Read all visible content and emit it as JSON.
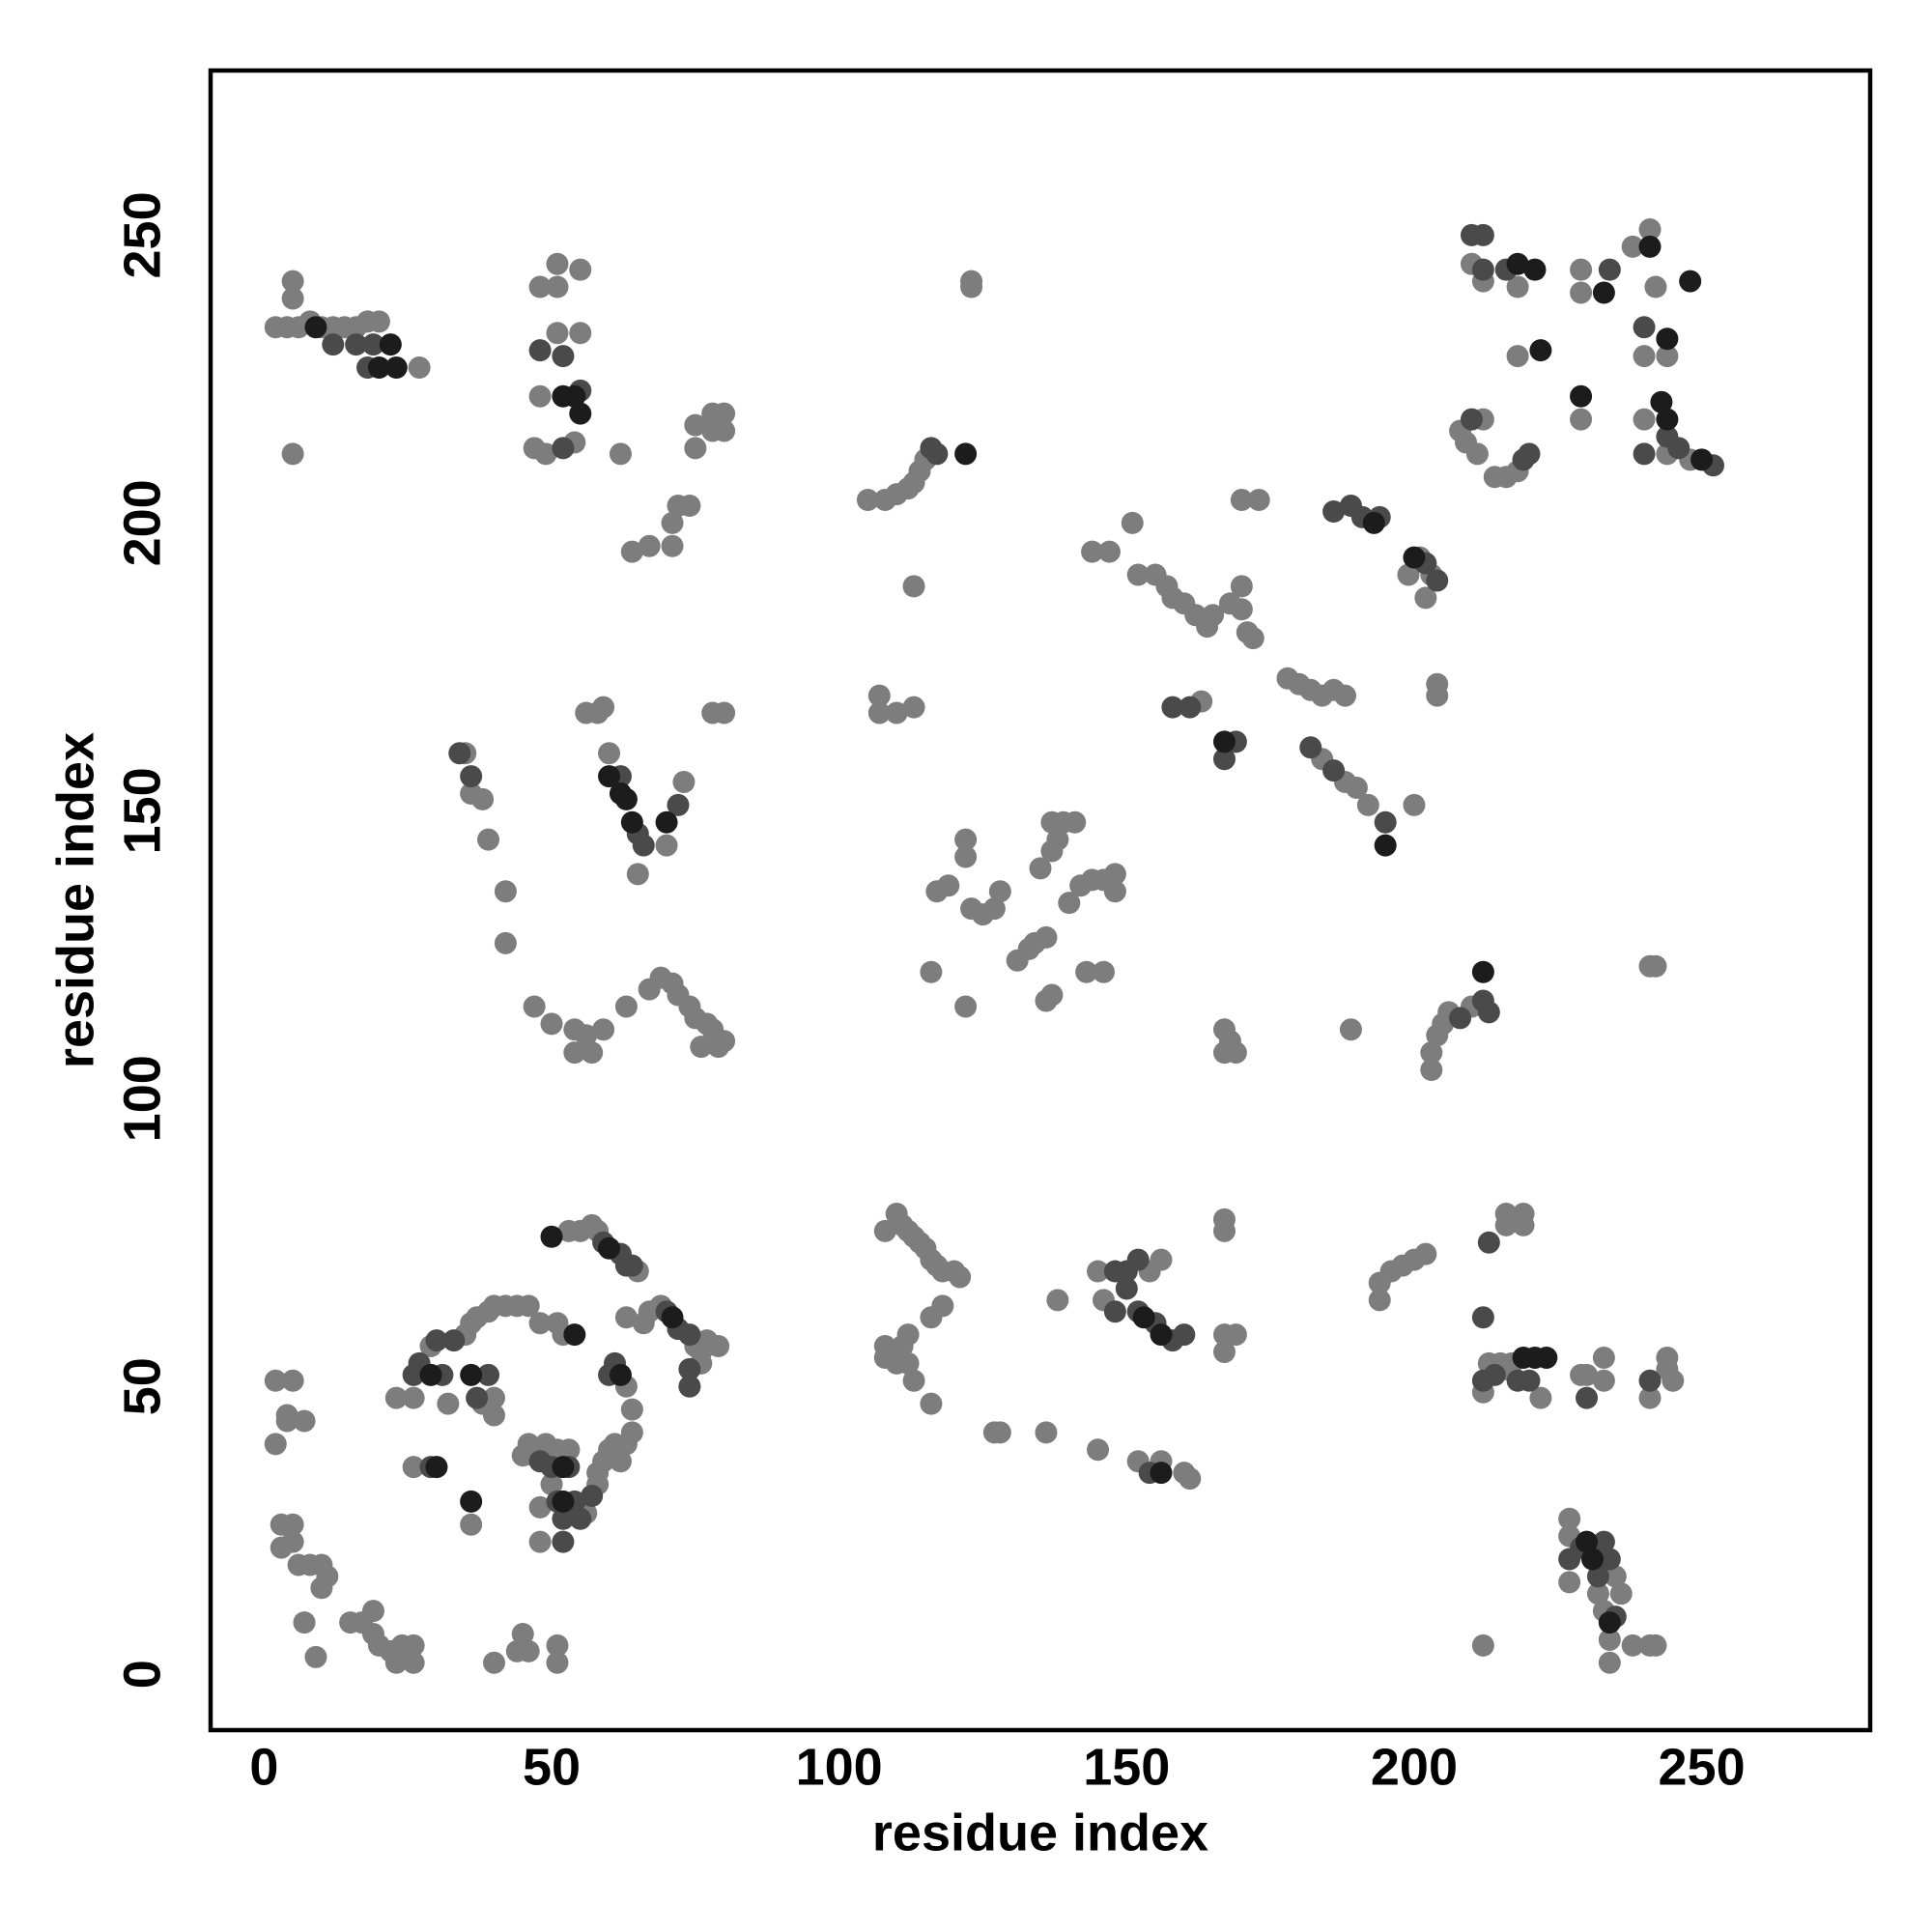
{
  "chart_data": {
    "type": "scatter",
    "xlabel": "residue index",
    "ylabel": "residue index",
    "xlim": [
      -9.3,
      279.3
    ],
    "ylim": [
      -9.7,
      278.6
    ],
    "xticks": [
      0,
      50,
      100,
      150,
      200,
      250
    ],
    "yticks": [
      0,
      50,
      100,
      150,
      200,
      250
    ],
    "grid": false,
    "series": [
      {
        "color": "#7d7d7d",
        "x": [
          2,
          4,
          6,
          8,
          10,
          12,
          14,
          16,
          18,
          20,
          27,
          5,
          5,
          5,
          51,
          55,
          48,
          51,
          51,
          55,
          48,
          47,
          49,
          54,
          62,
          64,
          67,
          71,
          71,
          72,
          74,
          75,
          78,
          80,
          78,
          80,
          75,
          105,
          108,
          110,
          112,
          113,
          114,
          115,
          123,
          123,
          113,
          144,
          147,
          151,
          152,
          155,
          157,
          158,
          160,
          162,
          164,
          165,
          168,
          170,
          171,
          172,
          170,
          170,
          173,
          199,
          201,
          203,
          202,
          204,
          204,
          178,
          180,
          182,
          184,
          186,
          188,
          184,
          188,
          190,
          192,
          200,
          163,
          107,
          107,
          110,
          113,
          210,
          212,
          218,
          218,
          229,
          229,
          238,
          241,
          240,
          244,
          242,
          229,
          240,
          244,
          248,
          208,
          212,
          209,
          211,
          214,
          216,
          218,
          35,
          36,
          38,
          39,
          42,
          42,
          56,
          58,
          59,
          60,
          65,
          70,
          73,
          78,
          80,
          47,
          50,
          54,
          54,
          57,
          56,
          59,
          63,
          67,
          69,
          71,
          72,
          74,
          75,
          77,
          78,
          80,
          79,
          76,
          122,
          122,
          119,
          117,
          116,
          122,
          123,
          125,
          127,
          128,
          131,
          133,
          134,
          136,
          136,
          137,
          135,
          137,
          138,
          137,
          139,
          141,
          140,
          142,
          144,
          146,
          148,
          148,
          143,
          146,
          167,
          167,
          168,
          169,
          189,
          203,
          203,
          204,
          205,
          206,
          210,
          241,
          242,
          2,
          5,
          4,
          4,
          7,
          2,
          3,
          5,
          3,
          5,
          6,
          8,
          10,
          11,
          10,
          7,
          9,
          15,
          17,
          19,
          19,
          20,
          22,
          23,
          24,
          26,
          26,
          40,
          44,
          45,
          46,
          51,
          51,
          23,
          26,
          29,
          35,
          36,
          37,
          39,
          40,
          42,
          44,
          46,
          48,
          51,
          52,
          53,
          55,
          57,
          58,
          65,
          32,
          26,
          38,
          39,
          40,
          40,
          36,
          45,
          46,
          47,
          49,
          51,
          53,
          48,
          48,
          56,
          58,
          58,
          59,
          60,
          61,
          62,
          63,
          64,
          64,
          63,
          63,
          66,
          67,
          69,
          75,
          76,
          77,
          79,
          76,
          50,
          108,
          110,
          111,
          112,
          113,
          114,
          115,
          116,
          117,
          118,
          120,
          121,
          108,
          108,
          110,
          111,
          112,
          112,
          113,
          116,
          116,
          118,
          127,
          128,
          136,
          145,
          138,
          145,
          146,
          154,
          156,
          152,
          156,
          160,
          161,
          167,
          167,
          167,
          169,
          167,
          194,
          194,
          196,
          198,
          200,
          202,
          216,
          216,
          219,
          219,
          212,
          213,
          215,
          216,
          217,
          222,
          229,
          230,
          233,
          233,
          241,
          244,
          244,
          245,
          227,
          227,
          227,
          232,
          233,
          234,
          234,
          235,
          236,
          238,
          241,
          242,
          212
        ],
        "values": [
          234,
          234,
          234,
          235,
          234,
          234,
          234,
          234,
          235,
          235,
          227,
          242,
          239,
          212,
          245,
          244,
          241,
          241,
          233,
          233,
          222,
          213,
          212,
          214,
          212,
          195,
          196,
          196,
          200,
          203,
          203,
          217,
          219,
          219,
          216,
          216,
          213,
          204,
          204,
          205,
          206,
          207,
          209,
          211,
          242,
          241,
          189,
          195,
          195,
          200,
          191,
          191,
          189,
          187,
          186,
          184,
          182,
          184,
          186,
          185,
          181,
          180,
          189,
          204,
          204,
          191,
          194,
          191,
          187,
          172,
          170,
          173,
          172,
          171,
          170,
          171,
          170,
          159,
          155,
          154,
          151,
          151,
          169,
          170,
          167,
          167,
          168,
          245,
          242,
          241,
          229,
          244,
          240,
          248,
          251,
          229,
          229,
          241,
          218,
          218,
          212,
          211,
          216,
          218,
          214,
          212,
          208,
          208,
          209,
          160,
          153,
          152,
          145,
          136,
          127,
          167,
          167,
          168,
          160,
          139,
          144,
          155,
          167,
          167,
          116,
          113,
          112,
          108,
          108,
          111,
          112,
          116,
          119,
          121,
          120,
          118,
          116,
          114,
          113,
          112,
          110,
          109,
          109,
          145,
          142,
          137,
          136,
          122,
          116,
          133,
          132,
          133,
          136,
          124,
          126,
          127,
          128,
          117,
          118,
          140,
          143,
          145,
          148,
          148,
          148,
          134,
          137,
          138,
          138,
          139,
          136,
          122,
          122,
          112,
          108,
          110,
          108,
          112,
          105,
          108,
          111,
          113,
          115,
          116,
          123,
          123,
          51,
          51,
          44,
          45,
          44,
          40,
          26,
          26,
          22,
          23,
          19,
          19,
          19,
          17,
          15,
          9,
          3,
          9,
          9,
          11,
          7,
          5,
          4,
          2,
          5,
          2,
          5,
          2,
          4,
          7,
          4,
          5,
          2,
          48,
          48,
          57,
          59,
          61,
          62,
          63,
          64,
          64,
          64,
          64,
          61,
          61,
          59,
          77,
          77,
          78,
          77,
          70,
          47,
          36,
          47,
          47,
          45,
          48,
          26,
          38,
          40,
          38,
          40,
          39,
          39,
          29,
          23,
          28,
          33,
          35,
          37,
          39,
          40,
          37,
          40,
          42,
          46,
          50,
          62,
          61,
          63,
          64,
          57,
          56,
          58,
          57,
          54,
          33,
          77,
          80,
          78,
          77,
          76,
          75,
          74,
          72,
          71,
          70,
          70,
          69,
          57,
          55,
          54,
          57,
          59,
          54,
          51,
          47,
          62,
          64,
          42,
          42,
          42,
          39,
          65,
          70,
          65,
          70,
          72,
          37,
          37,
          35,
          34,
          79,
          77,
          59,
          59,
          56,
          68,
          65,
          70,
          71,
          72,
          73,
          80,
          78,
          80,
          78,
          49,
          54,
          54,
          53,
          54,
          48,
          52,
          52,
          55,
          51,
          48,
          55,
          53,
          51,
          27,
          24,
          16,
          14,
          11,
          6,
          2,
          17,
          14,
          5,
          5,
          5,
          5
        ]
      },
      {
        "color": "#4a4a4a",
        "x": [
          12,
          16,
          19,
          18,
          52,
          48,
          52,
          55,
          117,
          116,
          212,
          210,
          212,
          216,
          220,
          219,
          210,
          234,
          240,
          244,
          246,
          252,
          240,
          202,
          191,
          194,
          204,
          169,
          167,
          161,
          158,
          36,
          34,
          62,
          65,
          66,
          72,
          26,
          27,
          30,
          33,
          31,
          29,
          37,
          39,
          48,
          50,
          53,
          51,
          54,
          55,
          52,
          52,
          57,
          61,
          60,
          59,
          62,
          63,
          64,
          70,
          72,
          74,
          74,
          74,
          148,
          150,
          150,
          152,
          148,
          152,
          155,
          158,
          160,
          154,
          212,
          214,
          220,
          218,
          227,
          229,
          232,
          233,
          234,
          235,
          230,
          241,
          212,
          213,
          208,
          212,
          213,
          186,
          189,
          195,
          186,
          182
        ],
        "values": [
          231,
          231,
          231,
          227,
          213,
          230,
          229,
          223,
          212,
          213,
          244,
          250,
          250,
          244,
          212,
          211,
          218,
          244,
          234,
          215,
          213,
          210,
          212,
          193,
          201,
          201,
          190,
          162,
          159,
          168,
          168,
          156,
          160,
          156,
          146,
          144,
          151,
          52,
          54,
          58,
          58,
          52,
          36,
          48,
          52,
          37,
          36,
          36,
          30,
          30,
          27,
          27,
          23,
          31,
          54,
          52,
          75,
          73,
          71,
          71,
          63,
          60,
          59,
          53,
          50,
          63,
          67,
          70,
          72,
          70,
          63,
          61,
          58,
          59,
          35,
          51,
          52,
          51,
          51,
          20,
          22,
          17,
          23,
          20,
          10,
          48,
          51,
          62,
          75,
          114,
          117,
          115,
          202,
          203,
          148,
          157,
          161
        ]
      },
      {
        "color": "#1c1c1c",
        "x": [
          9,
          22,
          23,
          20,
          55,
          52,
          54,
          60,
          62,
          63,
          64,
          70,
          122,
          221,
          222,
          218,
          233,
          241,
          244,
          243,
          244,
          248,
          250,
          200,
          193,
          167,
          29,
          30,
          36,
          52,
          52,
          54,
          62,
          153,
          156,
          156,
          219,
          221,
          223,
          231,
          230,
          234,
          229,
          212,
          195,
          60,
          71,
          50,
          36
        ],
        "values": [
          234,
          231,
          227,
          227,
          219,
          222,
          222,
          156,
          153,
          152,
          148,
          148,
          212,
          244,
          230,
          245,
          240,
          248,
          232,
          221,
          218,
          242,
          211,
          194,
          200,
          162,
          52,
          36,
          30,
          30,
          36,
          59,
          52,
          62,
          59,
          35,
          55,
          55,
          55,
          20,
          23,
          9,
          222,
          122,
          144,
          74,
          62,
          76,
          52
        ]
      }
    ]
  }
}
